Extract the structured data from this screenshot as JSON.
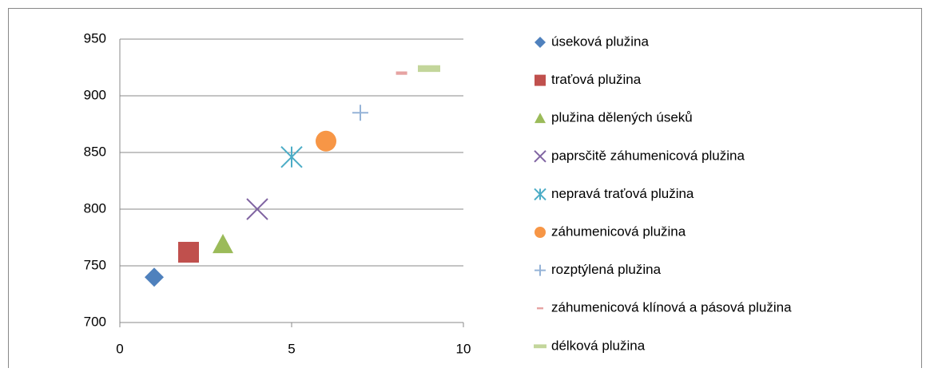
{
  "chart_data": {
    "type": "scatter",
    "xlim": [
      0,
      10
    ],
    "xticks": [
      0,
      5,
      10
    ],
    "ylim": [
      700,
      950
    ],
    "yticks": [
      700,
      750,
      800,
      850,
      900,
      950
    ],
    "grid": true,
    "legend": "right",
    "series": [
      {
        "name": "úseková plužina",
        "color": "#4f81bd",
        "marker": "diamond",
        "x": [
          1
        ],
        "values": [
          740
        ]
      },
      {
        "name": "traťová plužina",
        "color": "#c0504d",
        "marker": "square",
        "x": [
          2
        ],
        "values": [
          762
        ]
      },
      {
        "name": "plužina dělených úseků",
        "color": "#9bbb59",
        "marker": "triangle",
        "x": [
          3
        ],
        "values": [
          769
        ]
      },
      {
        "name": "paprsčitě záhumenicová plužina",
        "color": "#8064a2",
        "marker": "x",
        "x": [
          4
        ],
        "values": [
          800
        ]
      },
      {
        "name": "nepravá traťová plužina",
        "color": "#4bacc6",
        "marker": "star",
        "x": [
          5
        ],
        "values": [
          846
        ]
      },
      {
        "name": "záhumenicová plužina",
        "color": "#f79646",
        "marker": "circle",
        "x": [
          6
        ],
        "values": [
          860
        ]
      },
      {
        "name": "rozptýlená plužina",
        "color": "#95b3d7",
        "marker": "plus",
        "x": [
          7
        ],
        "values": [
          885
        ]
      },
      {
        "name": "záhumenicová klínová a pásová plužina",
        "color": "#e6a3a2",
        "marker": "dash",
        "x": [
          8.2
        ],
        "values": [
          920
        ]
      },
      {
        "name": "délková plužina",
        "color": "#c3d69b",
        "marker": "dash",
        "x": [
          9
        ],
        "values": [
          924
        ]
      }
    ]
  }
}
